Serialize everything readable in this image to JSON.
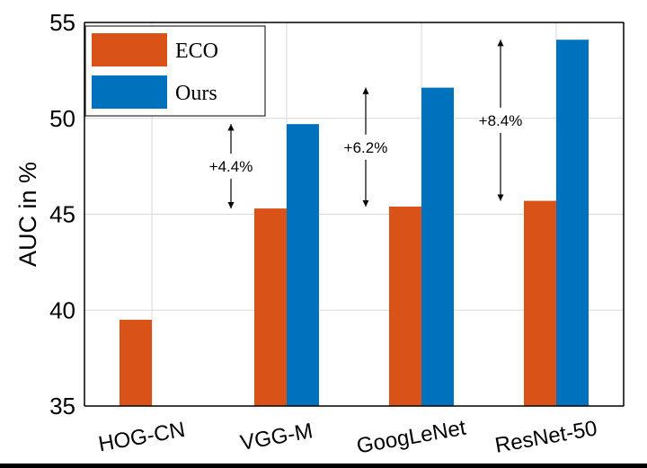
{
  "chart_data": {
    "type": "bar",
    "title": "",
    "xlabel": "",
    "ylabel": "AUC in %",
    "ylim": [
      35,
      55
    ],
    "yticks": [
      35,
      40,
      45,
      50,
      55
    ],
    "categories": [
      "HOG-CN",
      "VGG-M",
      "GoogLeNet",
      "ResNet-50"
    ],
    "series": [
      {
        "name": "ECO",
        "color": "#d95319",
        "values": [
          39.5,
          45.3,
          45.4,
          45.7
        ]
      },
      {
        "name": "Ours",
        "color": "#0072bd",
        "values": [
          null,
          49.7,
          51.6,
          54.1
        ]
      }
    ],
    "annotations": [
      {
        "category": "VGG-M",
        "text": "+4.4%",
        "from": 45.3,
        "to": 49.7
      },
      {
        "category": "GoogLeNet",
        "text": "+6.2%",
        "from": 45.4,
        "to": 51.6
      },
      {
        "category": "ResNet-50",
        "text": "+8.4%",
        "from": 45.7,
        "to": 54.1
      }
    ],
    "legend": "top-left",
    "grid": true
  }
}
